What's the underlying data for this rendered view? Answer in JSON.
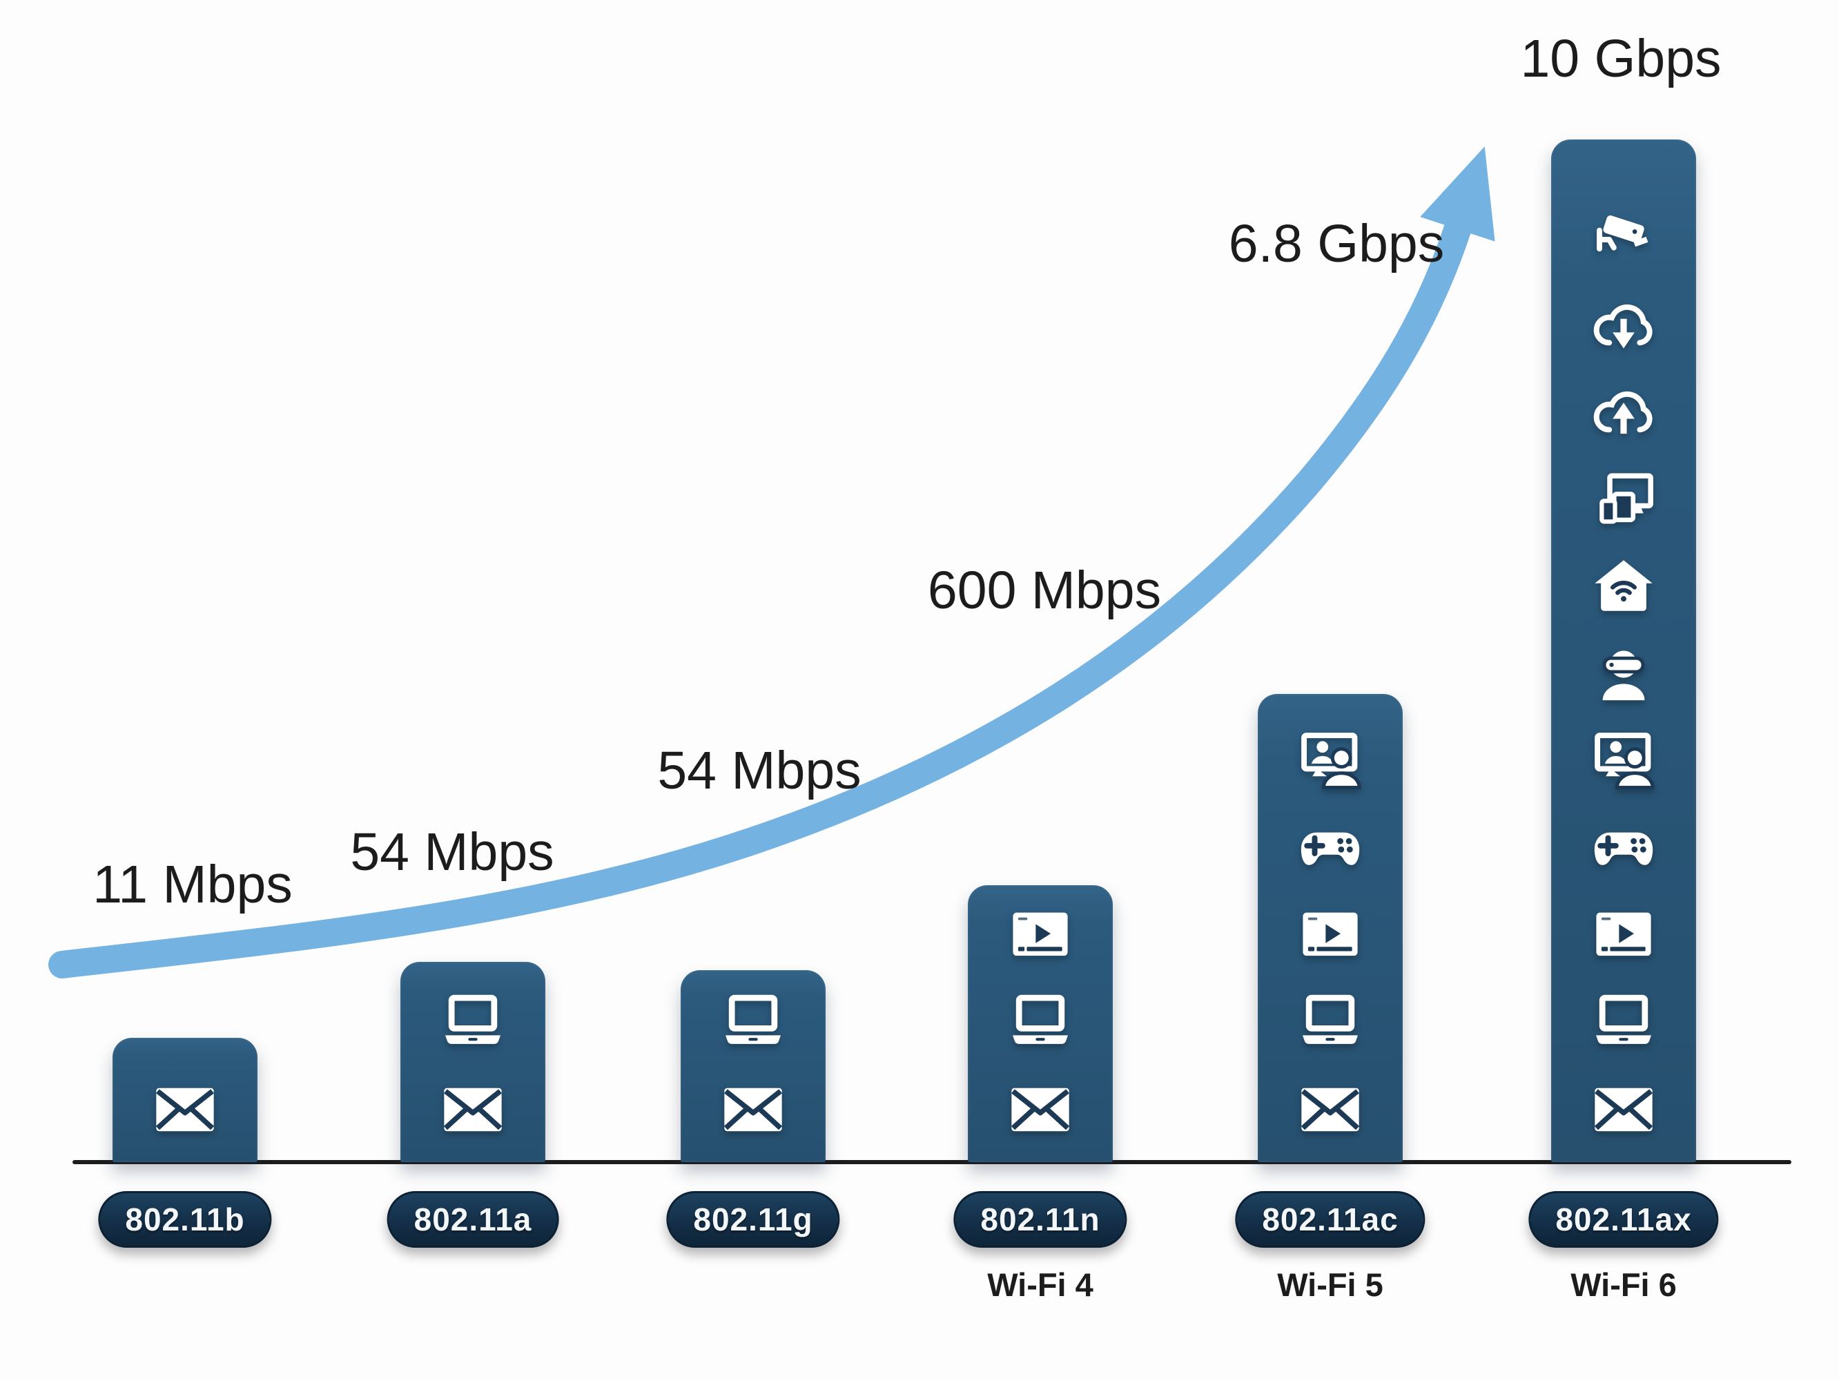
{
  "chart_data": {
    "type": "bar",
    "title": "",
    "categories": [
      "802.11b",
      "802.11a",
      "802.11g",
      "802.11n",
      "802.11ac",
      "802.11ax"
    ],
    "values_label": [
      "11 Mbps",
      "54 Mbps",
      "54 Mbps",
      "600 Mbps",
      "6.8 Gbps",
      "10 Gbps"
    ],
    "values_mbps": [
      11,
      54,
      54,
      600,
      6800,
      10000
    ],
    "xlabel": "",
    "ylabel": "",
    "legend": "none",
    "grid": false,
    "annotation_arrow": "exponential-growth-arrow",
    "bars": [
      {
        "standard": "802.11b",
        "speed": "11 Mbps",
        "speed_mbps": 11,
        "generation": "",
        "icons": [
          "email"
        ]
      },
      {
        "standard": "802.11a",
        "speed": "54 Mbps",
        "speed_mbps": 54,
        "generation": "",
        "icons": [
          "email",
          "laptop"
        ]
      },
      {
        "standard": "802.11g",
        "speed": "54 Mbps",
        "speed_mbps": 54,
        "generation": "",
        "icons": [
          "email",
          "laptop"
        ]
      },
      {
        "standard": "802.11n",
        "speed": "600 Mbps",
        "speed_mbps": 600,
        "generation": "Wi-Fi 4",
        "icons": [
          "email",
          "laptop",
          "video-streaming"
        ]
      },
      {
        "standard": "802.11ac",
        "speed": "6.8 Gbps",
        "speed_mbps": 6800,
        "generation": "Wi-Fi 5",
        "icons": [
          "email",
          "laptop",
          "video-streaming",
          "gaming",
          "video-conference"
        ]
      },
      {
        "standard": "802.11ax",
        "speed": "10 Gbps",
        "speed_mbps": 10000,
        "generation": "Wi-Fi 6",
        "icons": [
          "email",
          "laptop",
          "video-streaming",
          "gaming",
          "video-conference",
          "vr-headset",
          "smart-home",
          "multi-device",
          "cloud-upload",
          "cloud-download",
          "security-camera"
        ]
      }
    ],
    "colors": {
      "bar": "#2b5a7d",
      "pill": "#142f48",
      "arrow": "#74b2e2",
      "axis": "#1c1c1c",
      "text": "#1c1c1c",
      "icon": "#ffffff",
      "icon_accent": "#1c3a55",
      "background": "#fdfdfd"
    }
  }
}
